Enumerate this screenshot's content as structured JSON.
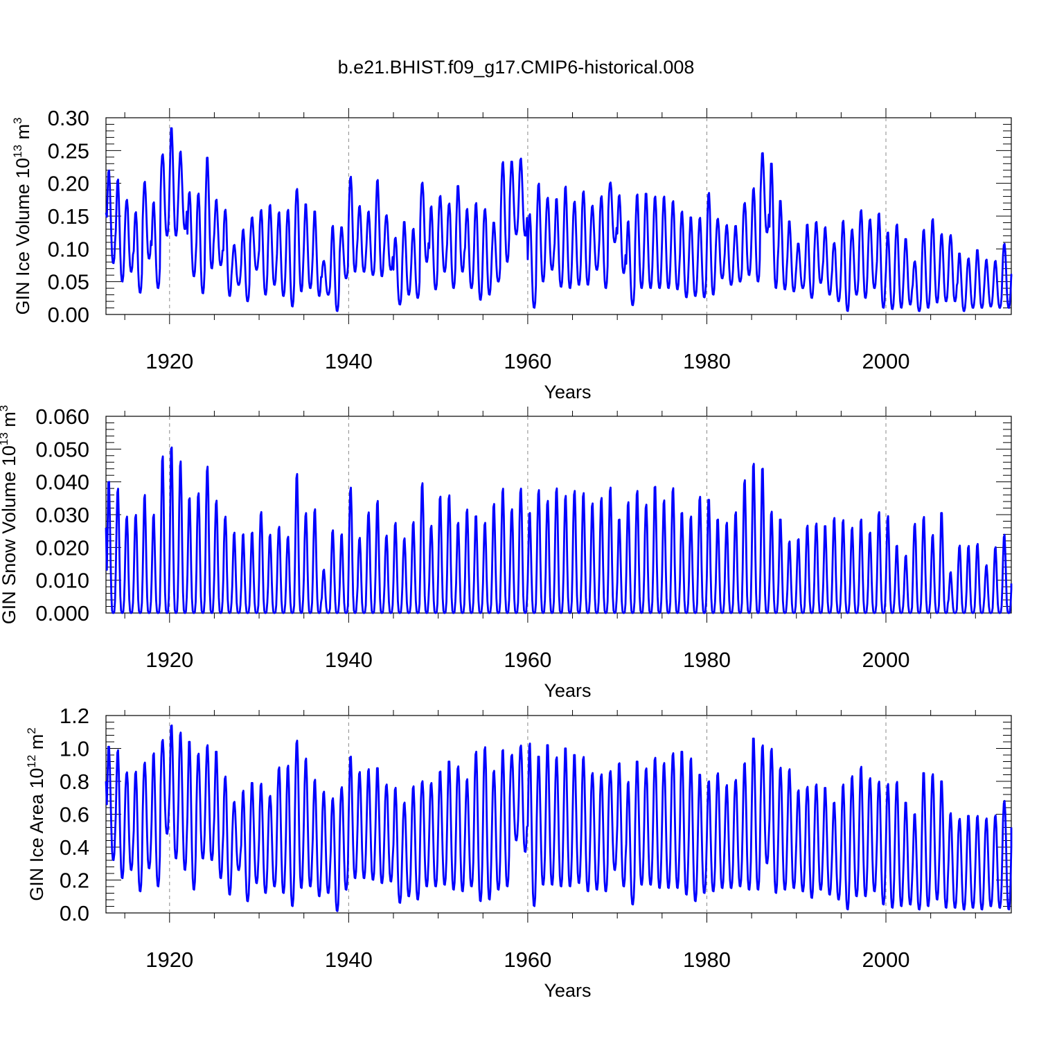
{
  "title": "b.e21.BHIST.f09_g17.CMIP6-historical.008",
  "chart_data": [
    {
      "type": "line",
      "ylabel": "GIN Ice Volume",
      "ylabel_unit_base": "10",
      "ylabel_unit_exp": "13",
      "ylabel_unit_rest": " m",
      "ylabel_unit_sup": "3",
      "xlabel": "Years",
      "xlim": [
        1912.9,
        2014.0
      ],
      "ylim": [
        0,
        0.3
      ],
      "x_ticks": [
        1920,
        1940,
        1960,
        1980,
        2000
      ],
      "x_tick_labels": [
        "1920",
        "1940",
        "1960",
        "1980",
        "2000"
      ],
      "y_ticks": [
        0,
        0.05,
        0.1,
        0.15,
        0.2,
        0.25,
        0.3
      ],
      "y_tick_labels": [
        "0.00",
        "0.05",
        "0.10",
        "0.15",
        "0.20",
        "0.25",
        "0.30"
      ],
      "series_color": "#0000ff",
      "series_name": "GIN Ice Volume (monthly)",
      "annual_max": [
        0.222,
        0.207,
        0.182,
        0.162,
        0.205,
        0.173,
        0.253,
        0.284,
        0.249,
        0.19,
        0.191,
        0.239,
        0.175,
        0.169,
        0.107,
        0.135,
        0.148,
        0.167,
        0.168,
        0.158,
        0.168,
        0.203,
        0.168,
        0.157,
        0.085,
        0.138,
        0.133,
        0.218,
        0.168,
        0.158,
        0.205,
        0.155,
        0.123,
        0.141,
        0.133,
        0.207,
        0.166,
        0.185,
        0.177,
        0.196,
        0.165,
        0.175,
        0.17,
        0.14,
        0.24,
        0.233,
        0.24,
        0.16,
        0.2,
        0.181,
        0.176,
        0.195,
        0.18,
        0.195,
        0.168,
        0.19,
        0.208,
        0.185,
        0.142,
        0.183,
        0.184,
        0.185,
        0.183,
        0.175,
        0.16,
        0.148,
        0.15,
        0.189,
        0.15,
        0.141,
        0.135,
        0.177,
        0.199,
        0.246,
        0.23,
        0.173,
        0.142,
        0.108,
        0.137,
        0.141,
        0.134,
        0.116,
        0.148,
        0.133,
        0.166,
        0.148,
        0.154,
        0.125,
        0.143,
        0.115,
        0.087,
        0.133,
        0.146,
        0.125,
        0.128,
        0.093,
        0.087,
        0.098,
        0.084,
        0.083,
        0.114,
        0.113
      ],
      "annual_min": [
        0.078,
        0.05,
        0.065,
        0.033,
        0.085,
        0.04,
        0.12,
        0.12,
        0.13,
        0.058,
        0.032,
        0.07,
        0.075,
        0.028,
        0.045,
        0.02,
        0.068,
        0.03,
        0.045,
        0.028,
        0.012,
        0.035,
        0.04,
        0.028,
        0.03,
        0.005,
        0.055,
        0.065,
        0.065,
        0.06,
        0.058,
        0.068,
        0.015,
        0.03,
        0.025,
        0.08,
        0.038,
        0.065,
        0.04,
        0.065,
        0.04,
        0.022,
        0.03,
        0.05,
        0.08,
        0.122,
        0.12,
        0.01,
        0.05,
        0.068,
        0.042,
        0.04,
        0.045,
        0.045,
        0.068,
        0.04,
        0.11,
        0.063,
        0.014,
        0.04,
        0.04,
        0.04,
        0.04,
        0.038,
        0.026,
        0.028,
        0.026,
        0.03,
        0.055,
        0.045,
        0.05,
        0.06,
        0.05,
        0.125,
        0.04,
        0.038,
        0.035,
        0.04,
        0.025,
        0.048,
        0.03,
        0.02,
        0.005,
        0.03,
        0.025,
        0.04,
        0.01,
        0.008,
        0.01,
        0.015,
        0.005,
        0.01,
        0.018,
        0.02,
        0.02,
        0.005,
        0.01,
        0.01,
        0.012,
        0.01,
        0.01,
        0.01
      ]
    },
    {
      "type": "line",
      "ylabel": "GIN Snow Volume",
      "ylabel_unit_base": "10",
      "ylabel_unit_exp": "13",
      "ylabel_unit_rest": " m",
      "ylabel_unit_sup": "3",
      "xlabel": "Years",
      "xlim": [
        1912.9,
        2014.0
      ],
      "ylim": [
        0,
        0.06
      ],
      "x_ticks": [
        1920,
        1940,
        1960,
        1980,
        2000
      ],
      "x_tick_labels": [
        "1920",
        "1940",
        "1960",
        "1980",
        "2000"
      ],
      "y_ticks": [
        0,
        0.01,
        0.02,
        0.03,
        0.04,
        0.05,
        0.06
      ],
      "y_tick_labels": [
        "0.000",
        "0.010",
        "0.020",
        "0.030",
        "0.040",
        "0.050",
        "0.060"
      ],
      "series_color": "#0000ff",
      "series_name": "GIN Snow Volume (monthly)",
      "annual_max": [
        0.04,
        0.04,
        0.032,
        0.032,
        0.036,
        0.03,
        0.048,
        0.0505,
        0.049,
        0.035,
        0.039,
        0.0485,
        0.037,
        0.032,
        0.025,
        0.024,
        0.0245,
        0.033,
        0.0245,
        0.0285,
        0.0245,
        0.0435,
        0.033,
        0.033,
        0.014,
        0.0265,
        0.024,
        0.041,
        0.0245,
        0.0335,
        0.0345,
        0.0255,
        0.0285,
        0.0245,
        0.0285,
        0.041,
        0.029,
        0.0355,
        0.037,
        0.0275,
        0.033,
        0.0295,
        0.0275,
        0.0335,
        0.04,
        0.033,
        0.041,
        0.0305,
        0.0405,
        0.037,
        0.0405,
        0.0375,
        0.0405,
        0.037,
        0.0345,
        0.0365,
        0.039,
        0.0285,
        0.0345,
        0.0385,
        0.0355,
        0.0385,
        0.0345,
        0.039,
        0.0305,
        0.0295,
        0.0365,
        0.0345,
        0.0285,
        0.0285,
        0.0315,
        0.0405,
        0.0455,
        0.044,
        0.0315,
        0.0285,
        0.022,
        0.0225,
        0.0275,
        0.0295,
        0.0265,
        0.0295,
        0.0285,
        0.027,
        0.0285,
        0.0245,
        0.0315,
        0.0305,
        0.0205,
        0.0175,
        0.0295,
        0.0305,
        0.0245,
        0.0305,
        0.0125,
        0.022,
        0.0205,
        0.0225,
        0.0155,
        0.0205,
        0.025,
        0.022
      ]
    },
    {
      "type": "line",
      "ylabel": "GIN Ice Area",
      "ylabel_unit_base": "10",
      "ylabel_unit_exp": "12",
      "ylabel_unit_rest": " m",
      "ylabel_unit_sup": "2",
      "xlabel": "Years",
      "xlim": [
        1912.9,
        2014.0
      ],
      "ylim": [
        0,
        1.2
      ],
      "x_ticks": [
        1920,
        1940,
        1960,
        1980,
        2000
      ],
      "x_tick_labels": [
        "1920",
        "1940",
        "1960",
        "1980",
        "2000"
      ],
      "y_ticks": [
        0,
        0.2,
        0.4,
        0.6,
        0.8,
        1.0,
        1.2
      ],
      "y_tick_labels": [
        "0.0",
        "0.2",
        "0.4",
        "0.6",
        "0.8",
        "1.0",
        "1.2"
      ],
      "series_color": "#0000ff",
      "series_name": "GIN Ice Area (monthly)",
      "annual_max": [
        1.01,
        1.0,
        0.9,
        0.88,
        0.95,
        0.97,
        1.08,
        1.14,
        1.13,
        1.04,
        0.97,
        1.04,
        0.98,
        0.87,
        0.69,
        0.76,
        0.79,
        0.79,
        0.75,
        0.93,
        0.91,
        1.09,
        0.96,
        0.82,
        0.76,
        0.75,
        0.81,
        0.95,
        0.87,
        0.88,
        0.88,
        0.82,
        0.78,
        0.7,
        0.79,
        0.85,
        0.83,
        0.86,
        0.92,
        0.95,
        0.82,
        1.02,
        1.04,
        0.9,
        0.99,
        0.97,
        1.05,
        1.03,
        0.95,
        1.02,
        0.97,
        1.0,
        0.96,
        0.97,
        0.9,
        0.88,
        0.9,
        0.91,
        0.8,
        0.92,
        0.91,
        0.97,
        0.94,
        1.02,
        0.98,
        0.94,
        0.84,
        0.8,
        0.88,
        0.78,
        0.85,
        0.91,
        1.06,
        1.02,
        1.03,
        0.91,
        0.88,
        0.75,
        0.81,
        0.8,
        0.76,
        0.67,
        0.79,
        0.84,
        0.89,
        0.84,
        0.85,
        0.83,
        0.82,
        0.67,
        0.6,
        0.85,
        0.86,
        0.8,
        0.62,
        0.61,
        0.59,
        0.61,
        0.6,
        0.62,
        0.73,
        0.73
      ],
      "annual_min": [
        0.32,
        0.21,
        0.26,
        0.13,
        0.27,
        0.16,
        0.48,
        0.33,
        0.26,
        0.14,
        0.33,
        0.32,
        0.21,
        0.11,
        0.26,
        0.07,
        0.18,
        0.12,
        0.16,
        0.12,
        0.04,
        0.15,
        0.16,
        0.1,
        0.12,
        0.01,
        0.14,
        0.21,
        0.21,
        0.2,
        0.18,
        0.19,
        0.06,
        0.1,
        0.08,
        0.16,
        0.16,
        0.17,
        0.14,
        0.13,
        0.16,
        0.07,
        0.08,
        0.14,
        0.16,
        0.44,
        0.37,
        0.04,
        0.17,
        0.17,
        0.16,
        0.16,
        0.18,
        0.13,
        0.14,
        0.13,
        0.26,
        0.16,
        0.05,
        0.17,
        0.17,
        0.15,
        0.15,
        0.15,
        0.11,
        0.07,
        0.12,
        0.13,
        0.15,
        0.15,
        0.16,
        0.14,
        0.14,
        0.3,
        0.12,
        0.14,
        0.15,
        0.13,
        0.09,
        0.14,
        0.11,
        0.08,
        0.02,
        0.1,
        0.1,
        0.13,
        0.05,
        0.03,
        0.04,
        0.05,
        0.02,
        0.04,
        0.08,
        0.03,
        0.03,
        0.02,
        0.03,
        0.02,
        0.04,
        0.03,
        0.02,
        0.08
      ]
    }
  ]
}
